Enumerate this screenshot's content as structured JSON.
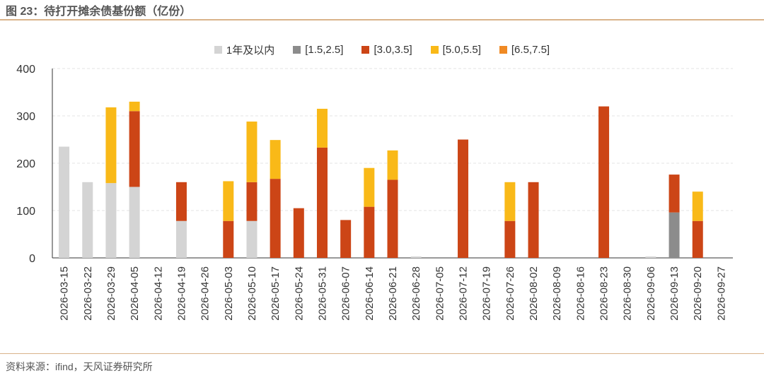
{
  "title": "图 23：待打开摊余债基份额（亿份）",
  "source": "资料来源：ifind，天风证券研究所",
  "chart_data": {
    "type": "bar",
    "stacked": true,
    "ylim": [
      0,
      400
    ],
    "yticks": [
      0,
      100,
      200,
      300,
      400
    ],
    "grid": true,
    "legend_position": "top",
    "categories": [
      "2026-03-15",
      "2026-03-22",
      "2026-03-29",
      "2026-04-05",
      "2026-04-12",
      "2026-04-19",
      "2026-04-26",
      "2026-05-03",
      "2026-05-10",
      "2026-05-17",
      "2026-05-24",
      "2026-05-31",
      "2026-06-07",
      "2026-06-14",
      "2026-06-21",
      "2026-06-28",
      "2026-07-05",
      "2026-07-12",
      "2026-07-19",
      "2026-07-26",
      "2026-08-02",
      "2026-08-09",
      "2026-08-16",
      "2026-08-23",
      "2026-08-30",
      "2026-09-06",
      "2026-09-13",
      "2026-09-20",
      "2026-09-27"
    ],
    "series": [
      {
        "name": "1年及以内",
        "color": "#d4d4d4",
        "values": [
          235,
          160,
          158,
          150,
          0,
          78,
          0,
          0,
          78,
          0,
          0,
          0,
          0,
          0,
          0,
          3,
          0,
          0,
          0,
          0,
          0,
          0,
          0,
          0,
          0,
          3,
          0,
          0,
          0
        ]
      },
      {
        "name": "[1.5,2.5]",
        "color": "#8c8c8c",
        "values": [
          0,
          0,
          0,
          0,
          0,
          0,
          0,
          0,
          0,
          0,
          0,
          0,
          0,
          0,
          0,
          0,
          0,
          0,
          0,
          0,
          0,
          0,
          0,
          0,
          0,
          0,
          96,
          0,
          0
        ]
      },
      {
        "name": "[3.0,3.5]",
        "color": "#cc4516",
        "values": [
          0,
          0,
          0,
          160,
          0,
          82,
          0,
          78,
          82,
          167,
          105,
          233,
          80,
          108,
          165,
          0,
          0,
          250,
          0,
          78,
          160,
          0,
          0,
          320,
          0,
          0,
          80,
          78,
          0
        ]
      },
      {
        "name": "[5.0,5.5]",
        "color": "#f9b918",
        "values": [
          0,
          0,
          160,
          20,
          0,
          0,
          0,
          84,
          128,
          82,
          0,
          82,
          0,
          82,
          62,
          0,
          0,
          0,
          0,
          82,
          0,
          0,
          0,
          0,
          0,
          0,
          0,
          62,
          0
        ]
      },
      {
        "name": "[6.5,7.5]",
        "color": "#f08a24",
        "values": [
          0,
          0,
          0,
          0,
          0,
          0,
          0,
          0,
          0,
          0,
          0,
          0,
          0,
          0,
          0,
          0,
          0,
          0,
          0,
          0,
          0,
          0,
          0,
          0,
          0,
          0,
          0,
          0,
          0
        ]
      }
    ]
  }
}
